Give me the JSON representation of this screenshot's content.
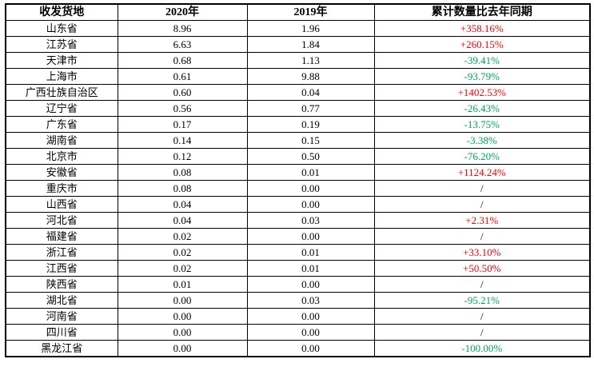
{
  "chart_data": {
    "type": "table",
    "title": "",
    "columns": [
      "收发货地",
      "2020年",
      "2019年",
      "累计数量比去年同期"
    ],
    "colors": {
      "positive": "#ff0000",
      "negative": "#00a650",
      "neutral": "#000000",
      "border": "#000000",
      "background": "#ffffff"
    },
    "rows": [
      {
        "region": "山东省",
        "v2020": "8.96",
        "v2019": "1.96",
        "yoy": "+358.16%",
        "trend": "positive"
      },
      {
        "region": "江苏省",
        "v2020": "6.63",
        "v2019": "1.84",
        "yoy": "+260.15%",
        "trend": "positive"
      },
      {
        "region": "天津市",
        "v2020": "0.68",
        "v2019": "1.13",
        "yoy": "-39.41%",
        "trend": "negative"
      },
      {
        "region": "上海市",
        "v2020": "0.61",
        "v2019": "9.88",
        "yoy": "-93.79%",
        "trend": "negative"
      },
      {
        "region": "广西壮族自治区",
        "v2020": "0.60",
        "v2019": "0.04",
        "yoy": "+1402.53%",
        "trend": "positive"
      },
      {
        "region": "辽宁省",
        "v2020": "0.56",
        "v2019": "0.77",
        "yoy": "-26.43%",
        "trend": "negative"
      },
      {
        "region": "广东省",
        "v2020": "0.17",
        "v2019": "0.19",
        "yoy": "-13.75%",
        "trend": "negative"
      },
      {
        "region": "湖南省",
        "v2020": "0.14",
        "v2019": "0.15",
        "yoy": "-3.38%",
        "trend": "negative"
      },
      {
        "region": "北京市",
        "v2020": "0.12",
        "v2019": "0.50",
        "yoy": "-76.20%",
        "trend": "negative"
      },
      {
        "region": "安徽省",
        "v2020": "0.08",
        "v2019": "0.01",
        "yoy": "+1124.24%",
        "trend": "positive"
      },
      {
        "region": "重庆市",
        "v2020": "0.08",
        "v2019": "0.00",
        "yoy": "/",
        "trend": "neutral"
      },
      {
        "region": "山西省",
        "v2020": "0.04",
        "v2019": "0.00",
        "yoy": "/",
        "trend": "neutral"
      },
      {
        "region": "河北省",
        "v2020": "0.04",
        "v2019": "0.03",
        "yoy": "+2.31%",
        "trend": "positive"
      },
      {
        "region": "福建省",
        "v2020": "0.02",
        "v2019": "0.00",
        "yoy": "/",
        "trend": "neutral"
      },
      {
        "region": "浙江省",
        "v2020": "0.02",
        "v2019": "0.01",
        "yoy": "+33.10%",
        "trend": "positive"
      },
      {
        "region": "江西省",
        "v2020": "0.02",
        "v2019": "0.01",
        "yoy": "+50.50%",
        "trend": "positive"
      },
      {
        "region": "陕西省",
        "v2020": "0.01",
        "v2019": "0.00",
        "yoy": "/",
        "trend": "neutral"
      },
      {
        "region": "湖北省",
        "v2020": "0.00",
        "v2019": "0.03",
        "yoy": "-95.21%",
        "trend": "negative"
      },
      {
        "region": "河南省",
        "v2020": "0.00",
        "v2019": "0.00",
        "yoy": "/",
        "trend": "neutral"
      },
      {
        "region": "四川省",
        "v2020": "0.00",
        "v2019": "0.00",
        "yoy": "/",
        "trend": "neutral"
      },
      {
        "region": "黑龙江省",
        "v2020": "0.00",
        "v2019": "0.00",
        "yoy": "-100.00%",
        "trend": "negative"
      }
    ]
  }
}
